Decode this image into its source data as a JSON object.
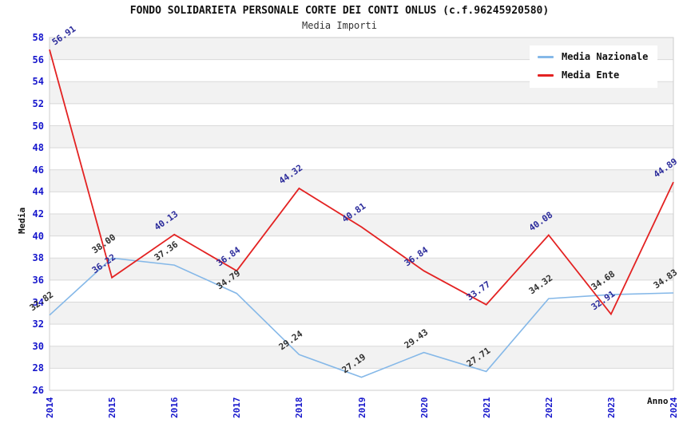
{
  "title": "FONDO SOLIDARIETA PERSONALE CORTE DEI CONTI ONLUS (c.f.96245920580)",
  "subtitle": "Media Importi",
  "chart_data": {
    "type": "line",
    "x": [
      "2014",
      "2015",
      "2016",
      "2017",
      "2018",
      "2019",
      "2020",
      "2021",
      "2022",
      "2023",
      "2024"
    ],
    "xlabel": "Anno",
    "ylabel": "Media",
    "ylim": [
      26,
      58
    ],
    "ytick_step": 2,
    "yticks": [
      58,
      56,
      54,
      52,
      50,
      48,
      46,
      44,
      42,
      40,
      38,
      36,
      34,
      32,
      30,
      28,
      26
    ],
    "grid": "horizontal-bands",
    "legend_position": "top-right-inside",
    "series": [
      {
        "name": "Media Nazionale",
        "color": "#85b8e8",
        "label_color": "#303030",
        "values": [
          32.82,
          38.0,
          37.36,
          34.79,
          29.24,
          27.19,
          29.43,
          27.71,
          34.32,
          34.68,
          34.83
        ]
      },
      {
        "name": "Media Ente",
        "color": "#e32222",
        "label_color": "#2b2b9b",
        "values": [
          56.91,
          36.22,
          40.13,
          36.84,
          44.32,
          40.81,
          36.84,
          33.77,
          40.08,
          32.91,
          44.89
        ]
      }
    ],
    "colors": {
      "band_gray": "#f2f2f2",
      "band_white": "#ffffff",
      "gridline": "#d9d9d9",
      "plot_border": "#cccccc",
      "axis_tick_text": "#1616cc"
    }
  }
}
